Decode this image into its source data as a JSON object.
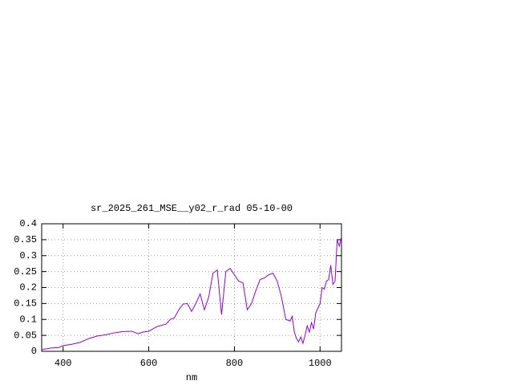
{
  "chart_data": {
    "type": "line",
    "title": "sr_2025_261_MSE__y02_r_rad 05-10-00",
    "x_label": "nm",
    "x": [
      350,
      370,
      390,
      400,
      420,
      440,
      460,
      480,
      500,
      520,
      540,
      560,
      575,
      585,
      600,
      620,
      640,
      650,
      660,
      670,
      680,
      690,
      700,
      710,
      720,
      730,
      740,
      750,
      760,
      770,
      780,
      790,
      800,
      810,
      820,
      830,
      840,
      850,
      860,
      870,
      880,
      890,
      900,
      910,
      920,
      930,
      935,
      940,
      945,
      950,
      955,
      960,
      965,
      970,
      975,
      980,
      985,
      990,
      1000,
      1005,
      1010,
      1015,
      1020,
      1025,
      1030,
      1035,
      1040,
      1045,
      1050
    ],
    "series": [
      {
        "name": "sr_2025_261_MSE__y02_r_rad",
        "color": "#9400d3",
        "values": [
          0.005,
          0.01,
          0.012,
          0.018,
          0.022,
          0.028,
          0.04,
          0.048,
          0.052,
          0.058,
          0.062,
          0.063,
          0.055,
          0.06,
          0.063,
          0.078,
          0.085,
          0.1,
          0.105,
          0.13,
          0.148,
          0.15,
          0.125,
          0.15,
          0.18,
          0.13,
          0.17,
          0.245,
          0.255,
          0.115,
          0.25,
          0.26,
          0.24,
          0.22,
          0.215,
          0.13,
          0.15,
          0.19,
          0.225,
          0.23,
          0.24,
          0.245,
          0.22,
          0.17,
          0.1,
          0.095,
          0.11,
          0.06,
          0.04,
          0.03,
          0.045,
          0.025,
          0.05,
          0.08,
          0.06,
          0.09,
          0.07,
          0.12,
          0.15,
          0.2,
          0.195,
          0.22,
          0.225,
          0.27,
          0.21,
          0.22,
          0.35,
          0.33,
          0.36
        ]
      }
    ],
    "xlim": [
      350,
      1050
    ],
    "xticks": [
      400,
      600,
      800,
      1000
    ],
    "ylim": [
      0,
      0.4
    ],
    "yticks": [
      0,
      0.05,
      0.1,
      0.15,
      0.2,
      0.25,
      0.3,
      0.35,
      0.4
    ],
    "grid": true
  }
}
